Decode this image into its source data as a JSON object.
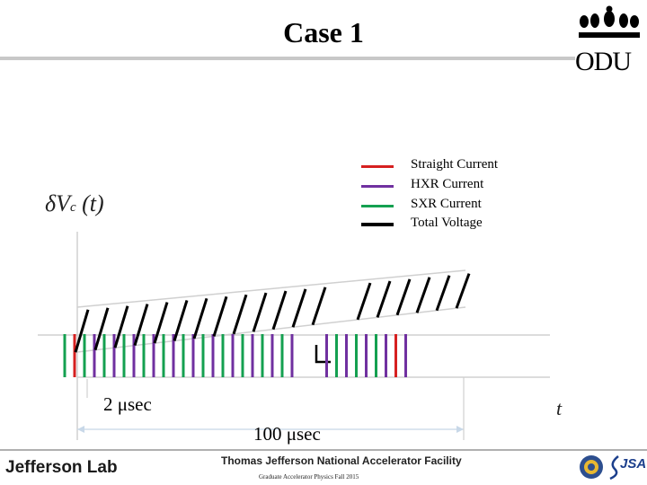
{
  "header": {
    "title": "Case 1",
    "logo_text": "ODU"
  },
  "legend": [
    {
      "label": "Straight Current",
      "color": "#d62020"
    },
    {
      "label": "HXR Current",
      "color": "#7030a0"
    },
    {
      "label": "SXR Current",
      "color": "#14a050"
    },
    {
      "label": "Total Voltage",
      "color": "#000000"
    }
  ],
  "axes": {
    "y_label_main": "δV",
    "y_label_sub": "c",
    "y_label_arg": "(t)",
    "x_label": "t"
  },
  "annotations": {
    "interval_short": "2 μsec",
    "interval_long": "100 μsec"
  },
  "pulse_sequence": [
    "SXR",
    "Straight",
    "SXR",
    "HXR",
    "SXR",
    "HXR",
    "SXR",
    "HXR",
    "SXR",
    "HXR",
    "SXR",
    "HXR",
    "SXR",
    "HXR",
    "SXR",
    "HXR",
    "SXR",
    "HXR",
    "SXR",
    "HXR",
    "SXR",
    "HXR",
    "SXR",
    "HXR",
    "gap",
    "HXR",
    "SXR",
    "HXR",
    "SXR",
    "HXR",
    "SXR",
    "HXR",
    "Straight",
    "HXR"
  ],
  "footer": {
    "lab_name": "Jefferson Lab",
    "facility": "Thomas Jefferson National Accelerator Facility",
    "course": "Graduate Accelerator Physics Fall 2015",
    "partner_logo_text": "JSA"
  }
}
